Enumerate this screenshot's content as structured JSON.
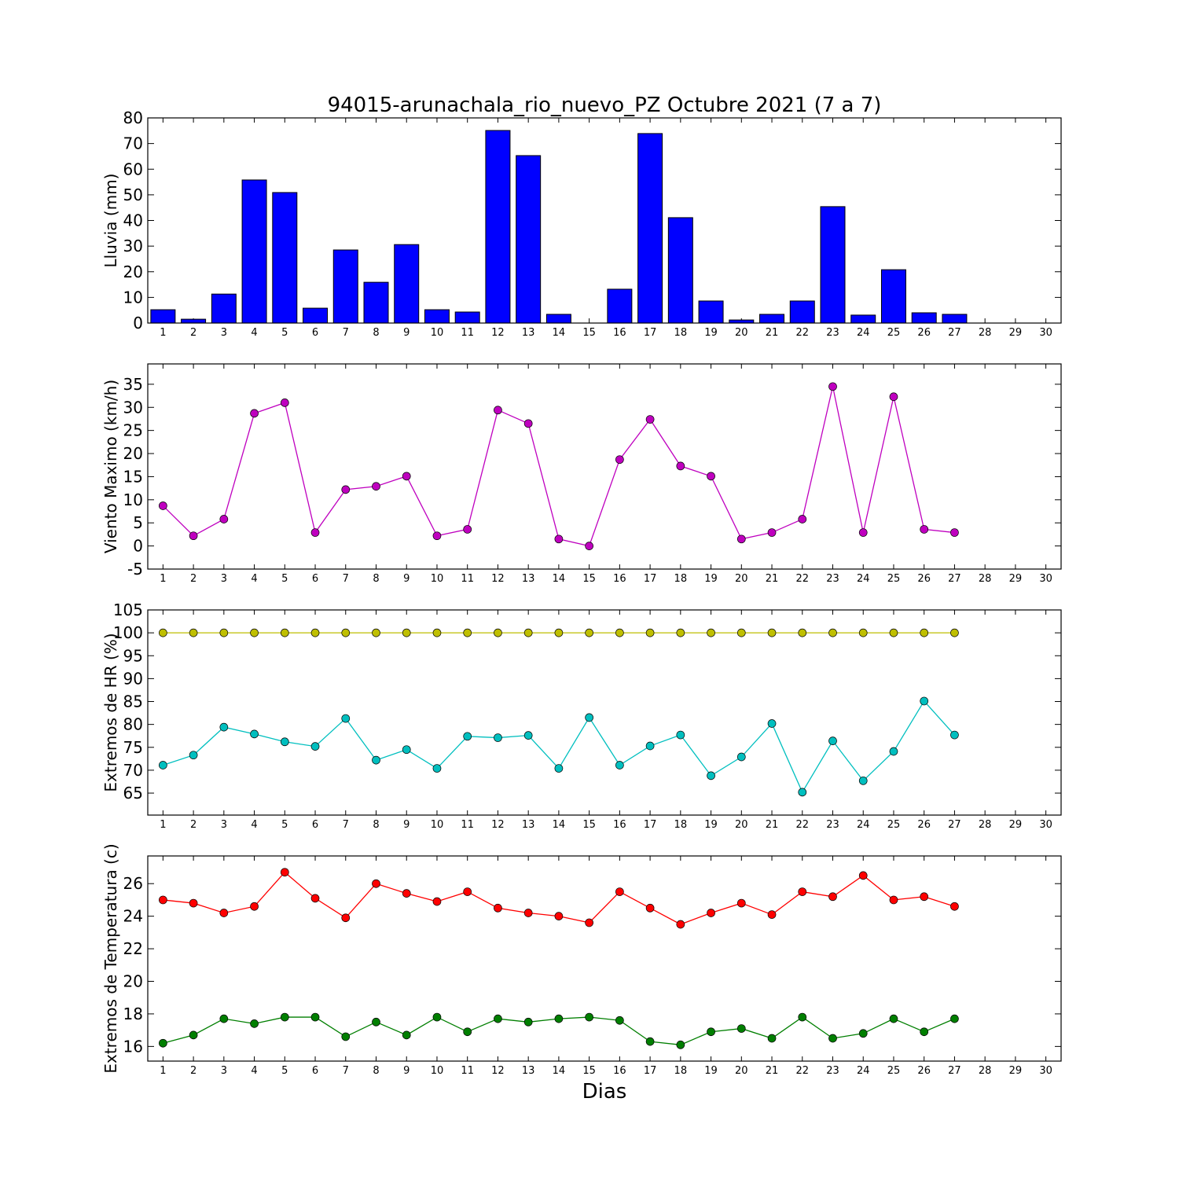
{
  "chart_data": [
    {
      "type": "bar",
      "title": "94015-arunachala_rio_nuevo_PZ Octubre 2021  (7 a 7)",
      "y_label": "Lluvia (mm)",
      "x": [
        1,
        2,
        3,
        4,
        5,
        6,
        7,
        8,
        9,
        10,
        11,
        12,
        13,
        14,
        15,
        16,
        17,
        18,
        19,
        20,
        21,
        22,
        23,
        24,
        25,
        26,
        27
      ],
      "values": [
        5.2,
        1.5,
        11.3,
        55.8,
        50.9,
        5.8,
        28.5,
        15.9,
        30.6,
        5.2,
        4.3,
        75.1,
        65.3,
        3.4,
        0,
        13.2,
        73.9,
        41.1,
        8.6,
        1.2,
        3.4,
        8.6,
        45.4,
        3.1,
        20.8,
        4.0,
        3.4
      ],
      "color": "#0000ff",
      "xlim": [
        0.5,
        30.5
      ],
      "xticks": [
        1,
        2,
        3,
        4,
        5,
        6,
        7,
        8,
        9,
        10,
        11,
        12,
        13,
        14,
        15,
        16,
        17,
        18,
        19,
        20,
        21,
        22,
        23,
        24,
        25,
        26,
        27,
        28,
        29,
        30
      ],
      "ylim": [
        0,
        80
      ],
      "yticks": [
        0,
        10,
        20,
        30,
        40,
        50,
        60,
        70,
        80
      ]
    },
    {
      "type": "line",
      "y_label": "Viento Maximo (km/h)",
      "x": [
        1,
        2,
        3,
        4,
        5,
        6,
        7,
        8,
        9,
        10,
        11,
        12,
        13,
        14,
        15,
        16,
        17,
        18,
        19,
        20,
        21,
        22,
        23,
        24,
        25,
        26,
        27
      ],
      "series": [
        {
          "color": "#bf00bf",
          "values": [
            8.7,
            2.2,
            5.8,
            28.7,
            31.0,
            2.9,
            12.2,
            12.9,
            15.1,
            2.2,
            3.6,
            29.4,
            26.5,
            1.5,
            0,
            18.7,
            27.4,
            17.3,
            15.1,
            1.5,
            2.9,
            5.8,
            34.5,
            2.9,
            32.3,
            3.6,
            2.9
          ]
        }
      ],
      "xlim": [
        0.5,
        30.5
      ],
      "xticks": [
        1,
        2,
        3,
        4,
        5,
        6,
        7,
        8,
        9,
        10,
        11,
        12,
        13,
        14,
        15,
        16,
        17,
        18,
        19,
        20,
        21,
        22,
        23,
        24,
        25,
        26,
        27,
        28,
        29,
        30
      ],
      "ylim": [
        -5,
        39.4
      ],
      "yticks": [
        -5,
        0,
        5,
        10,
        15,
        20,
        25,
        30,
        35
      ]
    },
    {
      "type": "line",
      "y_label": "Extremos de HR (%)",
      "x": [
        1,
        2,
        3,
        4,
        5,
        6,
        7,
        8,
        9,
        10,
        11,
        12,
        13,
        14,
        15,
        16,
        17,
        18,
        19,
        20,
        21,
        22,
        23,
        24,
        25,
        26,
        27
      ],
      "series": [
        {
          "color": "#bfbf00",
          "values": [
            100,
            100,
            100,
            100,
            100,
            100,
            100,
            100,
            100,
            100,
            100,
            100,
            100,
            100,
            100,
            100,
            100,
            100,
            100,
            100,
            100,
            100,
            100,
            100,
            100,
            100,
            100
          ]
        },
        {
          "color": "#00bfbf",
          "values": [
            71.1,
            73.3,
            79.4,
            77.9,
            76.2,
            75.2,
            81.3,
            72.2,
            74.5,
            70.4,
            77.4,
            77.1,
            77.6,
            70.4,
            81.5,
            71.1,
            75.3,
            77.7,
            68.8,
            72.9,
            80.2,
            65.2,
            76.4,
            67.7,
            74.1,
            85.1,
            77.7
          ]
        }
      ],
      "xlim": [
        0.5,
        30.5
      ],
      "xticks": [
        1,
        2,
        3,
        4,
        5,
        6,
        7,
        8,
        9,
        10,
        11,
        12,
        13,
        14,
        15,
        16,
        17,
        18,
        19,
        20,
        21,
        22,
        23,
        24,
        25,
        26,
        27,
        28,
        29,
        30
      ],
      "ylim": [
        60.2,
        105
      ],
      "yticks": [
        65,
        70,
        75,
        80,
        85,
        90,
        95,
        100,
        105
      ]
    },
    {
      "type": "line",
      "y_label": "Extremos de Temperatura (c)",
      "x_label": "Dias",
      "x": [
        1,
        2,
        3,
        4,
        5,
        6,
        7,
        8,
        9,
        10,
        11,
        12,
        13,
        14,
        15,
        16,
        17,
        18,
        19,
        20,
        21,
        22,
        23,
        24,
        25,
        26,
        27
      ],
      "series": [
        {
          "color": "#ff0000",
          "values": [
            25.0,
            24.8,
            24.2,
            24.6,
            26.7,
            25.1,
            23.9,
            26.0,
            25.4,
            24.9,
            25.5,
            24.5,
            24.2,
            24.0,
            23.6,
            25.5,
            24.5,
            23.5,
            24.2,
            24.8,
            24.1,
            25.5,
            25.2,
            26.5,
            25.0,
            25.2,
            24.6
          ]
        },
        {
          "color": "#007f00",
          "values": [
            16.2,
            16.7,
            17.7,
            17.4,
            17.8,
            17.8,
            16.6,
            17.5,
            16.7,
            17.8,
            16.9,
            17.7,
            17.5,
            17.7,
            17.8,
            17.6,
            16.3,
            16.1,
            16.9,
            17.1,
            16.5,
            17.8,
            16.5,
            16.8,
            17.7,
            16.9,
            17.7
          ]
        }
      ],
      "xlim": [
        0.5,
        30.5
      ],
      "xticks": [
        1,
        2,
        3,
        4,
        5,
        6,
        7,
        8,
        9,
        10,
        11,
        12,
        13,
        14,
        15,
        16,
        17,
        18,
        19,
        20,
        21,
        22,
        23,
        24,
        25,
        26,
        27,
        28,
        29,
        30
      ],
      "ylim": [
        15.1,
        27.7
      ],
      "yticks": [
        16,
        18,
        20,
        22,
        24,
        26
      ]
    }
  ]
}
